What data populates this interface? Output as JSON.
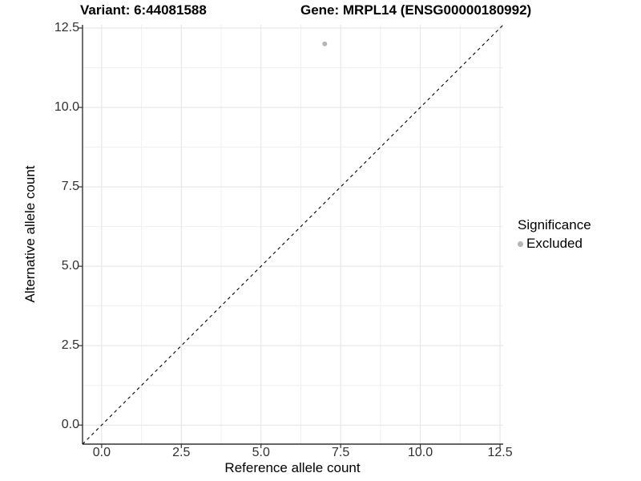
{
  "header": {
    "title_left": "Variant: 6:44081588",
    "title_right": "Gene: MRPL14 (ENSG00000180992)"
  },
  "chart_data": {
    "type": "scatter",
    "titles": [
      "Variant: 6:44081588",
      "Gene: MRPL14 (ENSG00000180992)"
    ],
    "xlabel": "Reference allele count",
    "ylabel": "Alternative allele count",
    "xlim": [
      -0.6,
      12.6
    ],
    "ylim": [
      -0.6,
      12.6
    ],
    "xtick_values": [
      0,
      2.5,
      5,
      7.5,
      10,
      12.5
    ],
    "xtick_labels": [
      "0.0",
      "2.5",
      "5.0",
      "7.5",
      "10.0",
      "12.5"
    ],
    "ytick_values": [
      0,
      2.5,
      5,
      7.5,
      10,
      12.5
    ],
    "ytick_labels": [
      "0.0",
      "2.5",
      "5.0",
      "7.5",
      "10.0",
      "12.5"
    ],
    "minor_tick_values": [
      1.25,
      3.75,
      6.25,
      8.75,
      11.25
    ],
    "grid": {
      "on": true,
      "major_color": "#e3e3e3",
      "minor_color": "#f0f0f0"
    },
    "axis_line_color": "#333333",
    "reference_line": {
      "slope": 1,
      "intercept": 0,
      "style": "dashed",
      "color": "#000000"
    },
    "series": [
      {
        "name": "Excluded",
        "color": "#b5b5b5",
        "points": [
          {
            "x": 7,
            "y": 12
          }
        ]
      }
    ],
    "legend": {
      "title": "Significance",
      "position": "right",
      "entries": [
        {
          "label": "Excluded",
          "color": "#b5b5b5"
        }
      ]
    }
  }
}
